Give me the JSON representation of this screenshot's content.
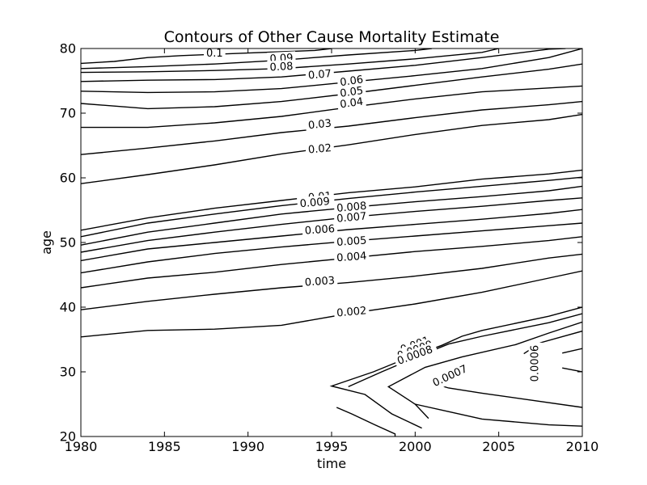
{
  "chart_data": {
    "type": "contour",
    "title": "Contours of Other Cause Mortality Estimate",
    "xlabel": "time",
    "ylabel": "age",
    "xlim": [
      1980,
      2010
    ],
    "ylim": [
      20,
      80
    ],
    "xticks": [
      1980,
      1985,
      1990,
      1995,
      2000,
      2005,
      2010
    ],
    "yticks": [
      20,
      30,
      40,
      50,
      60,
      70,
      80
    ],
    "grid": false,
    "contours": [
      {
        "level": "0.1",
        "points": [
          [
            1980,
            77.7
          ],
          [
            1982,
            78.0
          ],
          [
            1984,
            78.6
          ],
          [
            1986,
            78.9
          ],
          [
            1988,
            79.1
          ],
          [
            1990,
            79.3
          ],
          [
            1992,
            79.5
          ],
          [
            1994,
            79.7
          ],
          [
            1995,
            80.0
          ]
        ],
        "label_at": [
          1988,
          79.2
        ],
        "label_angle": 0
      },
      {
        "level": "0.09",
        "points": [
          [
            1980,
            76.9
          ],
          [
            1984,
            77.2
          ],
          [
            1988,
            77.6
          ],
          [
            1992,
            78.2
          ],
          [
            1996,
            79.0
          ],
          [
            2000,
            79.7
          ],
          [
            2001,
            80.0
          ]
        ],
        "label_at": [
          1992,
          78.4
        ],
        "label_angle": -3
      },
      {
        "level": "0.08",
        "points": [
          [
            1980,
            76.3
          ],
          [
            1984,
            76.4
          ],
          [
            1988,
            76.6
          ],
          [
            1992,
            76.9
          ],
          [
            1996,
            77.6
          ],
          [
            2000,
            78.4
          ],
          [
            2004,
            79.4
          ],
          [
            2005,
            80.0
          ]
        ],
        "label_at": [
          1992,
          77.1
        ],
        "label_angle": -3
      },
      {
        "level": "0.07",
        "points": [
          [
            1980,
            74.9
          ],
          [
            1984,
            75.1
          ],
          [
            1988,
            75.2
          ],
          [
            1992,
            75.6
          ],
          [
            1996,
            76.5
          ],
          [
            2000,
            77.4
          ],
          [
            2004,
            78.6
          ],
          [
            2008,
            79.9
          ],
          [
            2009,
            80.0
          ]
        ],
        "label_at": [
          1994.3,
          75.9
        ],
        "label_angle": -5
      },
      {
        "level": "0.06",
        "points": [
          [
            1980,
            73.4
          ],
          [
            1984,
            73.2
          ],
          [
            1988,
            73.3
          ],
          [
            1992,
            73.8
          ],
          [
            1996,
            74.8
          ],
          [
            2000,
            75.8
          ],
          [
            2004,
            76.9
          ],
          [
            2008,
            78.6
          ],
          [
            2010,
            80.0
          ]
        ],
        "label_at": [
          1996.2,
          74.9
        ],
        "label_angle": -8
      },
      {
        "level": "0.05",
        "points": [
          [
            1980,
            71.5
          ],
          [
            1984,
            70.7
          ],
          [
            1988,
            71.0
          ],
          [
            1992,
            71.8
          ],
          [
            1996,
            73.0
          ],
          [
            2000,
            74.3
          ],
          [
            2004,
            75.6
          ],
          [
            2008,
            76.8
          ],
          [
            2010,
            77.6
          ]
        ],
        "label_at": [
          1996.2,
          73.2
        ],
        "label_angle": -8
      },
      {
        "level": "0.04",
        "points": [
          [
            1980,
            67.8
          ],
          [
            1984,
            67.8
          ],
          [
            1988,
            68.5
          ],
          [
            1992,
            69.5
          ],
          [
            1996,
            70.9
          ],
          [
            2000,
            72.2
          ],
          [
            2004,
            73.3
          ],
          [
            2008,
            73.9
          ],
          [
            2010,
            74.2
          ]
        ],
        "label_at": [
          1996.2,
          71.5
        ],
        "label_angle": -8
      },
      {
        "level": "0.03",
        "points": [
          [
            1980,
            63.6
          ],
          [
            1984,
            64.6
          ],
          [
            1988,
            65.7
          ],
          [
            1992,
            67.0
          ],
          [
            1996,
            68.0
          ],
          [
            2000,
            69.3
          ],
          [
            2004,
            70.5
          ],
          [
            2008,
            71.3
          ],
          [
            2010,
            71.8
          ]
        ],
        "label_at": [
          1994.3,
          68.2
        ],
        "label_angle": -6
      },
      {
        "level": "0.02",
        "points": [
          [
            1980,
            59.1
          ],
          [
            1984,
            60.5
          ],
          [
            1988,
            62.0
          ],
          [
            1992,
            63.7
          ],
          [
            1996,
            65.1
          ],
          [
            2000,
            66.7
          ],
          [
            2004,
            68.1
          ],
          [
            2008,
            69.0
          ],
          [
            2010,
            69.8
          ]
        ],
        "label_at": [
          1994.3,
          64.4
        ],
        "label_angle": -5
      },
      {
        "level": "0.01",
        "points": [
          [
            1980,
            51.9
          ],
          [
            1984,
            53.8
          ],
          [
            1988,
            55.3
          ],
          [
            1992,
            56.5
          ],
          [
            1996,
            57.7
          ],
          [
            2000,
            58.6
          ],
          [
            2004,
            59.8
          ],
          [
            2008,
            60.6
          ],
          [
            2010,
            61.2
          ]
        ],
        "label_at": [
          1994.3,
          57.0
        ],
        "label_angle": -5
      },
      {
        "level": "0.009",
        "points": [
          [
            1980,
            50.9
          ],
          [
            1984,
            53.0
          ],
          [
            1988,
            54.4
          ],
          [
            1992,
            55.7
          ],
          [
            1996,
            56.8
          ],
          [
            2000,
            57.8
          ],
          [
            2004,
            58.7
          ],
          [
            2008,
            59.6
          ],
          [
            2010,
            60.1
          ]
        ],
        "label_at": [
          1994,
          56.1
        ],
        "label_angle": -5
      },
      {
        "level": "0.008",
        "points": [
          [
            1980,
            49.6
          ],
          [
            1984,
            51.6
          ],
          [
            1988,
            53.0
          ],
          [
            1992,
            54.4
          ],
          [
            1996,
            55.4
          ],
          [
            2000,
            56.3
          ],
          [
            2004,
            57.1
          ],
          [
            2008,
            58.0
          ],
          [
            2010,
            58.7
          ]
        ],
        "label_at": [
          1996.2,
          55.4
        ],
        "label_angle": -5
      },
      {
        "level": "0.007",
        "points": [
          [
            1980,
            48.5
          ],
          [
            1984,
            50.3
          ],
          [
            1988,
            51.6
          ],
          [
            1992,
            52.8
          ],
          [
            1996,
            53.9
          ],
          [
            2000,
            54.8
          ],
          [
            2004,
            55.6
          ],
          [
            2008,
            56.5
          ],
          [
            2010,
            56.9
          ]
        ],
        "label_at": [
          1996.2,
          53.8
        ],
        "label_angle": -5
      },
      {
        "level": "0.006",
        "points": [
          [
            1980,
            47.2
          ],
          [
            1984,
            49.0
          ],
          [
            1988,
            50.0
          ],
          [
            1992,
            51.0
          ],
          [
            1996,
            52.0
          ],
          [
            2000,
            52.8
          ],
          [
            2004,
            53.6
          ],
          [
            2008,
            54.5
          ],
          [
            2010,
            55.1
          ]
        ],
        "label_at": [
          1994.3,
          51.9
        ],
        "label_angle": -4
      },
      {
        "level": "0.005",
        "points": [
          [
            1980,
            45.3
          ],
          [
            1984,
            47.0
          ],
          [
            1988,
            48.3
          ],
          [
            1992,
            49.3
          ],
          [
            1996,
            50.2
          ],
          [
            2000,
            51.0
          ],
          [
            2004,
            51.8
          ],
          [
            2008,
            52.6
          ],
          [
            2010,
            53.0
          ]
        ],
        "label_at": [
          1996.2,
          50.1
        ],
        "label_angle": -4
      },
      {
        "level": "0.004",
        "points": [
          [
            1980,
            43.0
          ],
          [
            1984,
            44.5
          ],
          [
            1988,
            45.4
          ],
          [
            1992,
            46.6
          ],
          [
            1996,
            47.6
          ],
          [
            2000,
            48.6
          ],
          [
            2004,
            49.4
          ],
          [
            2008,
            50.3
          ],
          [
            2010,
            50.9
          ]
        ],
        "label_at": [
          1996.2,
          47.7
        ],
        "label_angle": -4
      },
      {
        "level": "0.003",
        "points": [
          [
            1980,
            39.6
          ],
          [
            1984,
            40.9
          ],
          [
            1988,
            42.0
          ],
          [
            1992,
            43.0
          ],
          [
            1996,
            43.8
          ],
          [
            2000,
            44.8
          ],
          [
            2004,
            46.0
          ],
          [
            2008,
            47.6
          ],
          [
            2010,
            48.2
          ]
        ],
        "label_at": [
          1994.3,
          43.9
        ],
        "label_angle": -4
      },
      {
        "level": "0.002",
        "points": [
          [
            1980,
            35.4
          ],
          [
            1984,
            36.4
          ],
          [
            1988,
            36.6
          ],
          [
            1992,
            37.2
          ],
          [
            1996,
            39.0
          ],
          [
            2000,
            40.5
          ],
          [
            2004,
            42.3
          ],
          [
            2008,
            44.5
          ],
          [
            2010,
            45.6
          ]
        ],
        "label_at": [
          1996.2,
          39.2
        ],
        "label_angle": -5
      },
      {
        "level": "0.001",
        "points": [
          [
            2000.4,
            21.3
          ],
          [
            1998.6,
            23.5
          ],
          [
            1997,
            26.5
          ],
          [
            1995,
            27.8
          ],
          [
            1997.5,
            30.0
          ],
          [
            1999.4,
            32.0
          ],
          [
            2001.6,
            34.1
          ],
          [
            2002.8,
            35.5
          ],
          [
            2004,
            36.4
          ],
          [
            2008,
            38.6
          ],
          [
            2010,
            40.0
          ]
        ],
        "label_at": [
          2000,
          34.1
        ],
        "label_angle": -20
      },
      {
        "level": "0.0009",
        "points": [
          [
            1995.3,
            24.5
          ],
          [
            1996.2,
            23.5
          ],
          [
            1997.6,
            21.8
          ],
          [
            1998.8,
            20.4
          ],
          [
            1998.8,
            20.0
          ]
        ],
        "label_at": [
          2000,
          33.3
        ],
        "label_angle": -20
      },
      {
        "level": "0.0008",
        "points": [
          [
            1996,
            27.7
          ],
          [
            1998,
            30.0
          ],
          [
            2000,
            32.2
          ],
          [
            2002,
            34.3
          ],
          [
            2004,
            35.5
          ],
          [
            2008,
            37.6
          ],
          [
            2010,
            39.0
          ]
        ],
        "label_at": [
          2000,
          32.5
        ],
        "label_angle": -20
      },
      {
        "level": "0.0007",
        "points": [
          [
            2000.8,
            22.8
          ],
          [
            2000,
            25.0
          ],
          [
            1998.4,
            27.7
          ],
          [
            2000.6,
            30.7
          ],
          [
            2002.8,
            32.3
          ],
          [
            2006,
            34.2
          ],
          [
            2008,
            36.0
          ],
          [
            2010,
            37.7
          ]
        ],
        "label_at": [
          2002.1,
          29.3
        ],
        "label_angle": -25
      },
      {
        "level": "0.0006",
        "points": [
          [
            2006.5,
            32.8
          ],
          [
            2007.5,
            34.5
          ],
          [
            2010,
            36.3
          ]
        ],
        "label_at": [
          2007.2,
          31.3
        ],
        "label_angle": -90
      }
    ],
    "extra_segments": [
      [
        [
          2010,
          24.5
        ],
        [
          2004,
          26.7
        ],
        [
          2002,
          27.5
        ],
        [
          2001.6,
          27.8
        ]
      ],
      [
        [
          2010,
          21.6
        ],
        [
          2008,
          21.8
        ],
        [
          2004,
          22.7
        ],
        [
          2000,
          25.0
        ]
      ],
      [
        [
          2008.8,
          32.9
        ],
        [
          2010,
          33.6
        ]
      ],
      [
        [
          2008.8,
          30.6
        ],
        [
          2010,
          30.0
        ]
      ]
    ]
  }
}
